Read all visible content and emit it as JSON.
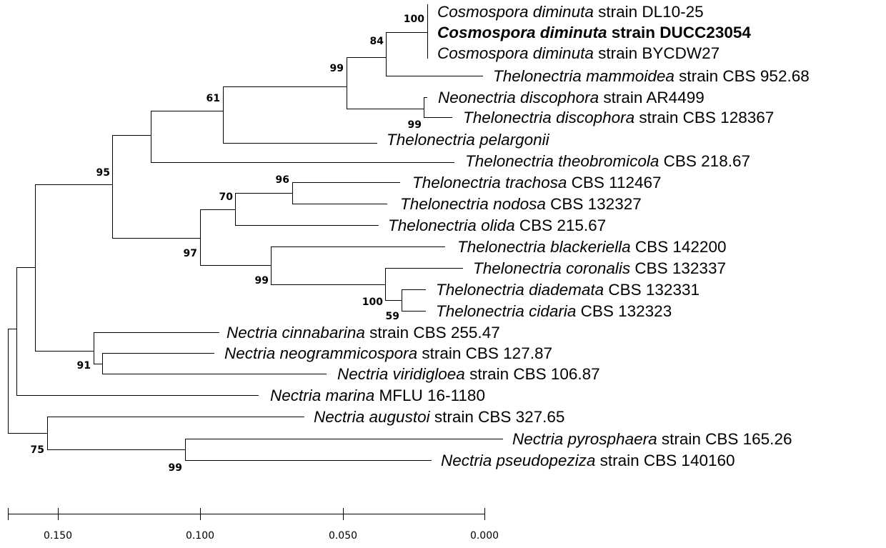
{
  "figure": "phylogenetic-tree",
  "taxa": [
    {
      "id": "t1",
      "italic": "Cosmospora diminuta",
      "rest": " strain DL10-25",
      "bold": false
    },
    {
      "id": "t2",
      "italic": "Cosmospora diminuta",
      "rest": " strain DUCC23054",
      "bold": true
    },
    {
      "id": "t3",
      "italic": "Cosmospora diminuta",
      "rest": " strain BYCDW27",
      "bold": false
    },
    {
      "id": "t4",
      "italic": "Thelonectria mammoidea",
      "rest": " strain CBS 952.68",
      "bold": false
    },
    {
      "id": "t5",
      "italic": "Neonectria discophora",
      "rest": " strain AR4499",
      "bold": false
    },
    {
      "id": "t6",
      "italic": "Thelonectria discophora",
      "rest": " strain CBS 128367",
      "bold": false
    },
    {
      "id": "t7",
      "italic": "Thelonectria pelargonii",
      "rest": "",
      "bold": false
    },
    {
      "id": "t8",
      "italic": "Thelonectria theobromicola",
      "rest": " CBS 218.67",
      "bold": false
    },
    {
      "id": "t9",
      "italic": "Thelonectria trachosa",
      "rest": " CBS 112467",
      "bold": false
    },
    {
      "id": "t10",
      "italic": "Thelonectria nodosa",
      "rest": " CBS 132327",
      "bold": false
    },
    {
      "id": "t11",
      "italic": "Thelonectria olida",
      "rest": " CBS 215.67",
      "bold": false
    },
    {
      "id": "t12",
      "italic": "Thelonectria blackeriella",
      "rest": " CBS 142200",
      "bold": false
    },
    {
      "id": "t13",
      "italic": "Thelonectria coronalis",
      "rest": " CBS 132337",
      "bold": false
    },
    {
      "id": "t14",
      "italic": "Thelonectria diademata",
      "rest": " CBS 132331",
      "bold": false
    },
    {
      "id": "t15",
      "italic": "Thelonectria cidaria",
      "rest": " CBS 132323",
      "bold": false
    },
    {
      "id": "t16",
      "italic": "Nectria cinnabarina",
      "rest": " strain CBS 255.47",
      "bold": false
    },
    {
      "id": "t17",
      "italic": "Nectria neogrammicospora",
      "rest": " strain CBS 127.87",
      "bold": false
    },
    {
      "id": "t18",
      "italic": "Nectria viridigloea",
      "rest": " strain CBS 106.87",
      "bold": false
    },
    {
      "id": "t19",
      "italic": "Nectria marina",
      "rest": " MFLU 16-1180",
      "bold": false
    },
    {
      "id": "t20",
      "italic": "Nectria augustoi",
      "rest": " strain CBS 327.65",
      "bold": false
    },
    {
      "id": "t21",
      "italic": "Nectria pyrosphaera",
      "rest": " strain CBS 165.26",
      "bold": false
    },
    {
      "id": "t22",
      "italic": "Nectria pseudopeziza",
      "rest": " strain CBS 140160",
      "bold": false
    }
  ],
  "support_values": [
    "100",
    "84",
    "99",
    "99",
    "61",
    "95",
    "96",
    "70",
    "97",
    "99",
    "100",
    "59",
    "91",
    "75",
    "99"
  ],
  "scale_bar": {
    "ticks": [
      "0.150",
      "0.100",
      "0.050",
      "0.000"
    ]
  }
}
